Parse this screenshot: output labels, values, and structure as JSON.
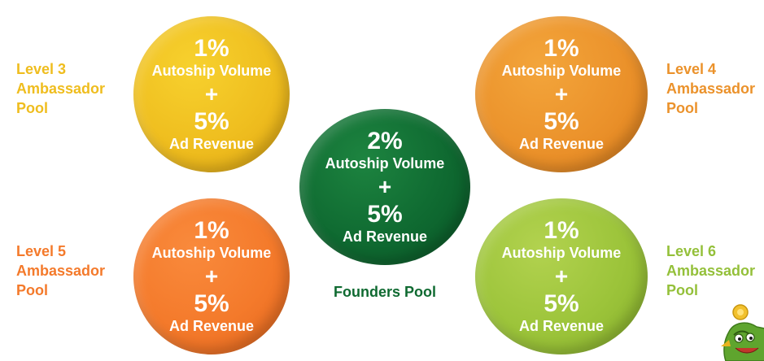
{
  "pools": {
    "level3": {
      "circle": {
        "percent": "1%",
        "volume_label": "Autoship Volume",
        "plus": "+",
        "ad_percent": "5%",
        "ad_label": "Ad Revenue"
      },
      "label": {
        "line1": "Level 3",
        "line2": "Ambassador",
        "line3": "Pool"
      },
      "color": "#efbd1e"
    },
    "level4": {
      "circle": {
        "percent": "1%",
        "volume_label": "Autoship Volume",
        "plus": "+",
        "ad_percent": "5%",
        "ad_label": "Ad Revenue"
      },
      "label": {
        "line1": "Level 4",
        "line2": "Ambassador",
        "line3": "Pool"
      },
      "color": "#eb922b"
    },
    "level5": {
      "circle": {
        "percent": "1%",
        "volume_label": "Autoship Volume",
        "plus": "+",
        "ad_percent": "5%",
        "ad_label": "Ad Revenue"
      },
      "label": {
        "line1": "Level 5",
        "line2": "Ambassador",
        "line3": "Pool"
      },
      "color": "#f47a2b"
    },
    "level6": {
      "circle": {
        "percent": "1%",
        "volume_label": "Autoship Volume",
        "plus": "+",
        "ad_percent": "5%",
        "ad_label": "Ad Revenue"
      },
      "label": {
        "line1": "Level 6",
        "line2": "Ambassador",
        "line3": "Pool"
      },
      "color": "#94c03a"
    },
    "founders": {
      "circle": {
        "percent": "2%",
        "volume_label": "Autoship Volume",
        "plus": "+",
        "ad_percent": "5%",
        "ad_label": "Ad Revenue"
      },
      "label": {
        "line1": "Founders Pool"
      },
      "color": "#0f6a31"
    }
  },
  "decor": {
    "mascot_icon": "mascot-character-icon"
  }
}
